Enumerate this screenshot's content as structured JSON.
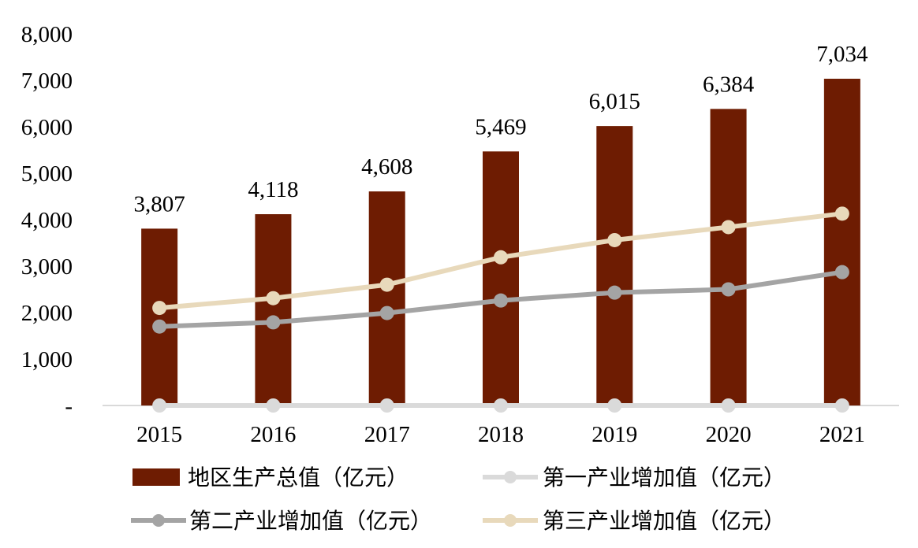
{
  "chart_data": {
    "type": "bar+line",
    "categories": [
      "2015",
      "2016",
      "2017",
      "2018",
      "2019",
      "2020",
      "2021"
    ],
    "y_tick_labels": [
      "-",
      "1,000",
      "2,000",
      "3,000",
      "4,000",
      "5,000",
      "6,000",
      "7,000",
      "8,000"
    ],
    "ylim": [
      0,
      8000
    ],
    "grid": false,
    "series": [
      {
        "name": "地区生产总值（亿元）",
        "type": "bar",
        "color": "#6e1c02",
        "values": [
          3807,
          4118,
          4608,
          5469,
          6015,
          6384,
          7034
        ],
        "labels": [
          "3,807",
          "4,118",
          "4,608",
          "5,469",
          "6,015",
          "6,384",
          "7,034"
        ]
      },
      {
        "name": "第一产业增加值（亿元）",
        "type": "line",
        "color": "#dadada",
        "values": [
          0,
          0,
          0,
          0,
          0,
          0,
          0
        ]
      },
      {
        "name": "第二产业增加值（亿元）",
        "type": "line",
        "color": "#a4a4a4",
        "values": [
          1700,
          1790,
          1990,
          2260,
          2430,
          2500,
          2870
        ]
      },
      {
        "name": "第三产业增加值（亿元）",
        "type": "line",
        "color": "#e8d9bb",
        "values": [
          2100,
          2310,
          2600,
          3190,
          3560,
          3840,
          4130
        ]
      }
    ],
    "legend_position": "bottom"
  }
}
